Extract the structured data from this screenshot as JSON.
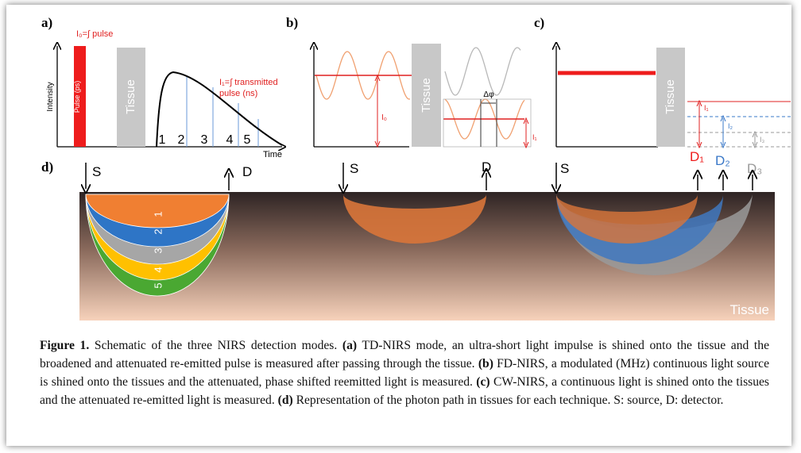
{
  "panel_a": {
    "label": "a)",
    "pulse_formula": "I₀=∫ pulse",
    "pulse_bar": "Pulse (ps)",
    "tissue": "Tissue",
    "transmitted": [
      "I₁=∫ transmitted",
      "pulse (ns)"
    ],
    "y_axis": "Intensity",
    "x_axis": "Time",
    "windows": [
      "1",
      "2",
      "3",
      "4",
      "5"
    ]
  },
  "panel_b": {
    "label": "b)",
    "tissue": "Tissue",
    "i0": "I₀",
    "phase": "Δφ",
    "i1": "I₁"
  },
  "panel_c": {
    "label": "c)",
    "tissue": "Tissue",
    "intensities": [
      "I₁",
      "I₂",
      "I₃"
    ],
    "detectors": [
      "D₁",
      "D₂",
      "D₃"
    ]
  },
  "panel_d": {
    "label": "d)",
    "td": {
      "source": "S",
      "detector": "D",
      "layers": [
        "1",
        "2",
        "3",
        "4",
        "5"
      ]
    },
    "fd": {
      "source": "S",
      "detector": "D"
    },
    "cw": {
      "source": "S"
    },
    "tissue": "Tissue"
  },
  "caption": [
    {
      "text": "Figure 1.",
      "bold": true
    },
    {
      "text": " Schematic of the three NIRS detection modes. "
    },
    {
      "text": "(a)",
      "bold": true
    },
    {
      "text": " TD-NIRS mode, an ultra-short light impulse is shined onto the tissue and the broadened and attenuated re-emitted pulse is measured after passing through the tissue. "
    },
    {
      "text": "(b)",
      "bold": true
    },
    {
      "text": " FD-NIRS, a modulated (MHz) continuous light source is shined onto the tissues and the attenuated, phase shifted reemitted light is measured. "
    },
    {
      "text": "(c)",
      "bold": true
    },
    {
      "text": " CW-NIRS, a continuous light is shined onto the tissues and the attenuated re-emitted light is measured. "
    },
    {
      "text": "(d)",
      "bold": true
    },
    {
      "text": " Representation of the photon path in tissues for each technique. S: source, D: detector."
    }
  ]
}
